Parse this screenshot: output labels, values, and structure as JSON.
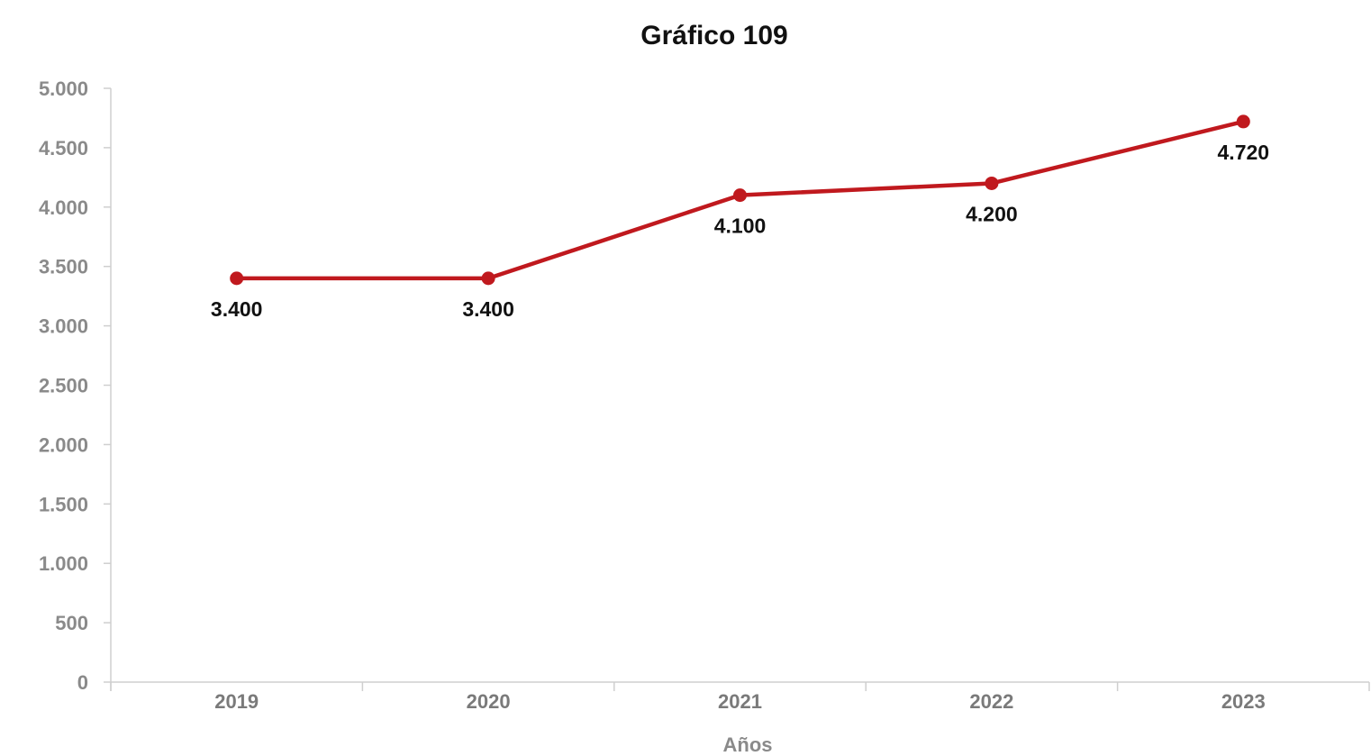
{
  "chart_data": {
    "type": "line",
    "title": "Gráfico 109",
    "xlabel": "Años",
    "ylabel": "",
    "categories": [
      "2019",
      "2020",
      "2021",
      "2022",
      "2023"
    ],
    "series": [
      {
        "values": [
          3400,
          3400,
          4100,
          4200,
          4720
        ]
      }
    ],
    "data_labels": [
      "3.400",
      "3.400",
      "4.100",
      "4.200",
      "4.720"
    ],
    "ylim": [
      0,
      5000
    ],
    "yticks": [
      0,
      500,
      1000,
      1500,
      2000,
      2500,
      3000,
      3500,
      4000,
      4500,
      5000
    ],
    "ytick_labels": [
      "0",
      "500",
      "1.000",
      "1.500",
      "2.000",
      "2.500",
      "3.000",
      "3.500",
      "4.000",
      "4.500",
      "5.000"
    ],
    "grid": false,
    "legend": "none",
    "colors": {
      "line": "#c0191e",
      "axis": "#cfcfcf"
    }
  }
}
